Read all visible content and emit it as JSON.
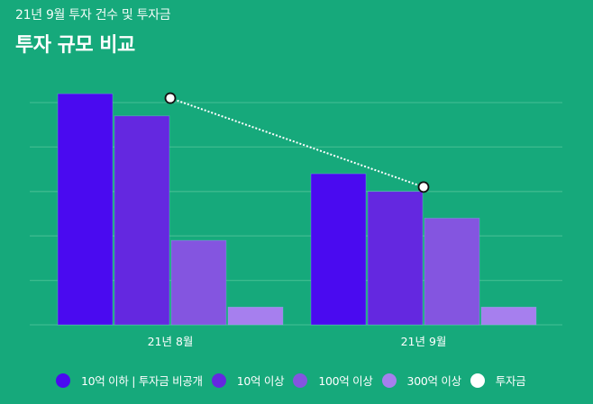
{
  "header": {
    "subtitle": "21년 9월 투자 건수 및 투자금",
    "title": "투자 규모 비교"
  },
  "colors": {
    "background": "#16a97b",
    "gridline": "#3dbb8f",
    "bar_separator": "#7fb8d8",
    "line": "#ffffff"
  },
  "chart_data": {
    "type": "bar",
    "title": "투자 규모 비교",
    "subtitle": "21년 9월 투자 건수 및 투자금",
    "xlabel": "",
    "ylabel": "",
    "value_unit": "relative (gridline units; y-axis unlabeled)",
    "ylim": [
      0,
      5
    ],
    "grid": true,
    "legend_position": "bottom",
    "categories": [
      "21년 8월",
      "21년 9월"
    ],
    "series": [
      {
        "name": "10억 이하 | 투자금 비공개",
        "type": "bar",
        "color": "#4a0af0",
        "values": [
          5.2,
          3.4
        ]
      },
      {
        "name": "10억 이상",
        "type": "bar",
        "color": "#6428e0",
        "values": [
          4.7,
          3.0
        ]
      },
      {
        "name": "100억 이상",
        "type": "bar",
        "color": "#8455e0",
        "values": [
          1.9,
          2.4
        ]
      },
      {
        "name": "300억 이상",
        "type": "bar",
        "color": "#a67fee",
        "values": [
          0.4,
          0.4
        ]
      },
      {
        "name": "투자금",
        "type": "line",
        "color": "#ffffff",
        "values": [
          5.1,
          3.1
        ]
      }
    ]
  }
}
